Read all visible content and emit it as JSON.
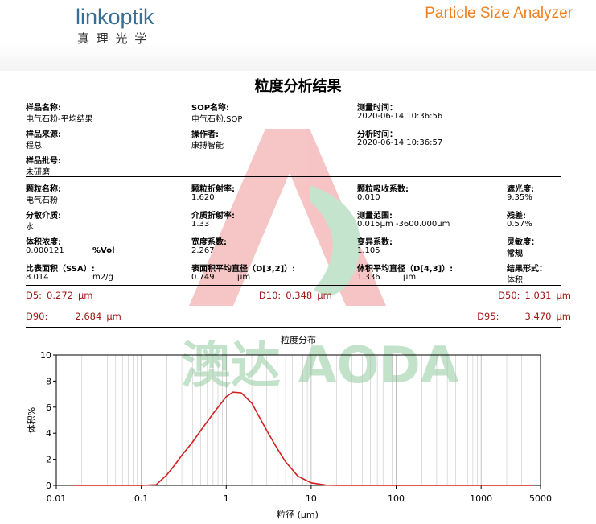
{
  "header": {
    "brand": "linkoptik",
    "brand_cn": "真 理 光 学",
    "product": "Particle Size Analyzer"
  },
  "report": {
    "title": "粒度分析结果",
    "watermark": "澳达 AODA",
    "sample_rows": [
      [
        {
          "label": "样品名称:",
          "value": "电气石粉-平均结果"
        },
        {
          "label": "SOP名称:",
          "value": "电气石粉.SOP"
        },
        {
          "label": "测量时间：",
          "value": "2020-06-14 10:36:56"
        }
      ],
      [
        {
          "label": "样品来源:",
          "value": "程总"
        },
        {
          "label": "操作者:",
          "value": "康搏智能"
        },
        {
          "label": "分析时间：",
          "value": "2020-06-14 10:36:57"
        }
      ],
      [
        {
          "label": "样品批号:",
          "value": "未研磨"
        }
      ]
    ],
    "param_rows": [
      [
        {
          "label": "颗粒名称:",
          "value": "电气石粉"
        },
        {
          "label": "颗粒折射率:",
          "value": "1.620"
        },
        {
          "label": "颗粒吸收系数:",
          "value": "0.010"
        },
        {
          "label": "遮光度:",
          "value": "9.35%"
        }
      ],
      [
        {
          "label": "分散介质:",
          "value": "水"
        },
        {
          "label": "介质折射率:",
          "value": "1.33"
        },
        {
          "label": "测量范围:",
          "value": "0.015μm -3600.000μm"
        },
        {
          "label": "残差:",
          "value": "0.57%"
        }
      ],
      [
        {
          "label": "体积浓度:",
          "value": "0.000121",
          "unit": "%Vol"
        },
        {
          "label": "宽度系数:",
          "value": "2.267"
        },
        {
          "label": "变异系数:",
          "value": "1.105"
        },
        {
          "label": "灵敏度：",
          "value": "常规"
        }
      ],
      [
        {
          "label": "比表面积（SSA）:",
          "value": "8.014",
          "unit": "m2/g"
        },
        {
          "label": "表面积平均直径（D[3,2]）:",
          "value": "0.749",
          "unit": "μm"
        },
        {
          "label": "体积平均直径（D[4,3]）:",
          "value": "1.336",
          "unit": "μm"
        },
        {
          "label": "结果形式：",
          "value": "体积"
        }
      ]
    ],
    "d_rows": [
      [
        {
          "label": "D5:",
          "value": "0.272",
          "unit": "μm"
        },
        {
          "label": "D10:",
          "value": "0.348",
          "unit": "μm"
        },
        {
          "label": "D50:",
          "value": "1.031",
          "unit": "μm"
        }
      ],
      [
        {
          "label": "D90:",
          "value": "2.684",
          "unit": "μm"
        },
        {
          "label": "D95:",
          "value": "3.470",
          "unit": "μm"
        }
      ]
    ]
  },
  "chart_data": {
    "type": "line",
    "title": "粒度分布",
    "x_label": "粒径 (μm)",
    "y_label": "体积%",
    "x_scale": "log",
    "grid": true,
    "xlim": [
      0.01,
      5000
    ],
    "ylim": [
      0,
      10
    ],
    "xticks": [
      0.01,
      0.1,
      1,
      10,
      100,
      1000,
      5000
    ],
    "yticks": [
      0,
      2,
      4,
      6,
      8,
      10
    ],
    "x": [
      0.016,
      0.1,
      0.15,
      0.2,
      0.25,
      0.3,
      0.4,
      0.5,
      0.7,
      1,
      1.2,
      1.5,
      2,
      3,
      4,
      5,
      7,
      10,
      15,
      20,
      100,
      1000,
      4000
    ],
    "series": [
      {
        "color": "#d42020",
        "values": [
          0,
          0,
          0.05,
          0.8,
          1.6,
          2.3,
          3.3,
          4.2,
          5.5,
          6.8,
          7.15,
          7.1,
          6.3,
          4.2,
          2.8,
          1.8,
          0.7,
          0.2,
          0.02,
          0,
          0,
          0,
          0
        ]
      }
    ]
  }
}
